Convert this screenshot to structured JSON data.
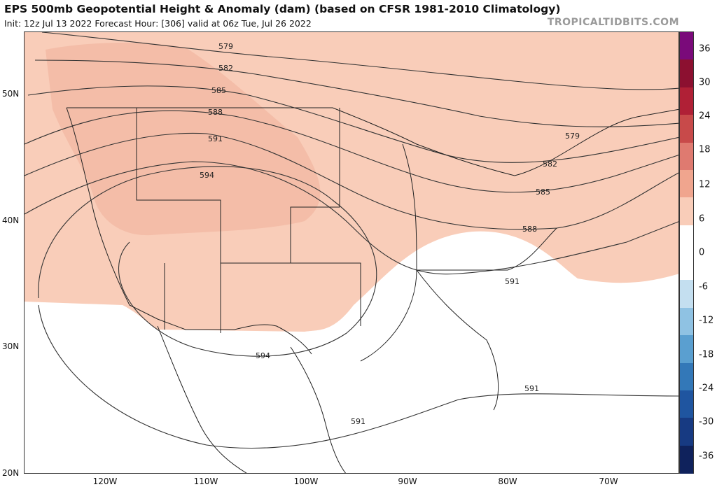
{
  "header": {
    "title": "EPS 500mb Geopotential Height & Anomaly (dam) (based on CFSR 1981-2010 Climatology)",
    "subtitle": "Init: 12z Jul 13 2022   Forecast Hour: [306]   valid at 06z Tue, Jul 26 2022",
    "watermark": "TROPICALTIDBITS.COM"
  },
  "axes": {
    "lat_labels": [
      "50N",
      "40N",
      "30N",
      "20N"
    ],
    "lon_labels": [
      "120W",
      "110W",
      "100W",
      "90W",
      "80W",
      "70W"
    ]
  },
  "contours": {
    "labels": [
      "579",
      "582",
      "585",
      "588",
      "591",
      "594",
      "579",
      "582",
      "585",
      "588",
      "591",
      "594",
      "591",
      "591"
    ]
  },
  "legend": {
    "labels": [
      "36",
      "30",
      "24",
      "18",
      "12",
      "6",
      "0",
      "-6",
      "-12",
      "-18",
      "-24",
      "-30",
      "-36"
    ],
    "colors": [
      "#7a0a7a",
      "#8c1030",
      "#b02036",
      "#c84a4a",
      "#df7a70",
      "#f0a58e",
      "#f9cdb9",
      "#ffffff",
      "#ffffff",
      "#c4dff0",
      "#8fc2e3",
      "#5a9fd0",
      "#3378b8",
      "#1f55a0",
      "#173a82",
      "#0f225c"
    ]
  },
  "colors": {
    "anomaly_fill": "#f9cdb9",
    "anomaly_inner": "#f0b39c",
    "contour": "#333333",
    "border": "#222222"
  }
}
